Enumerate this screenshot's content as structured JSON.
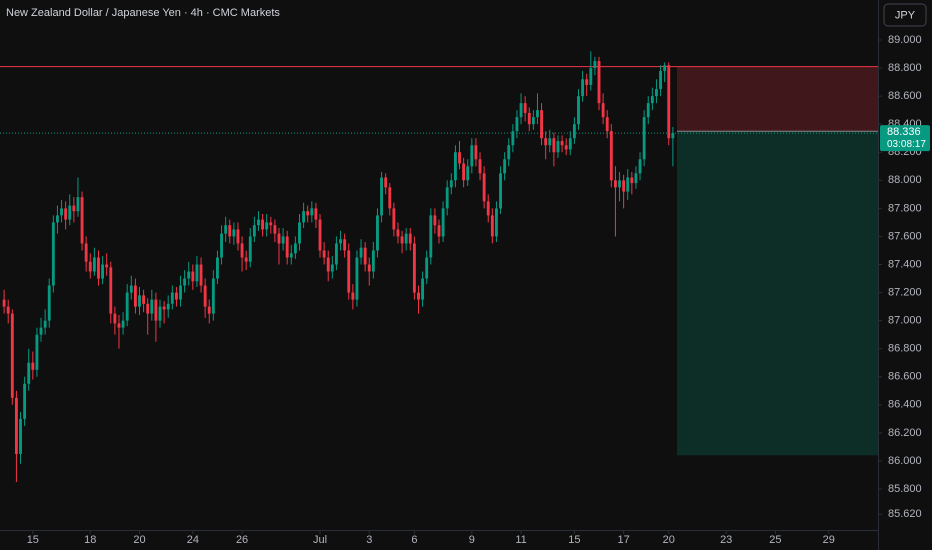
{
  "chart_data": {
    "type": "candlestick",
    "title": "New Zealand Dollar / Japanese Yen · 4h · CMC Markets",
    "currency": "JPY",
    "up_color": "#089981",
    "down_color": "#f23645",
    "ylim": [
      85.508,
      89.285
    ],
    "yticks": [
      {
        "value": 85.62,
        "label": "85.620"
      },
      {
        "value": 85.8,
        "label": "85.800"
      },
      {
        "value": 86,
        "label": "86.000"
      },
      {
        "value": 86.2,
        "label": "86.200"
      },
      {
        "value": 86.4,
        "label": "86.400"
      },
      {
        "value": 86.6,
        "label": "86.600"
      },
      {
        "value": 86.8,
        "label": "86.800"
      },
      {
        "value": 87,
        "label": "87.000"
      },
      {
        "value": 87.2,
        "label": "87.200"
      },
      {
        "value": 87.4,
        "label": "87.400"
      },
      {
        "value": 87.6,
        "label": "87.600"
      },
      {
        "value": 87.8,
        "label": "87.800"
      },
      {
        "value": 88,
        "label": "88.000"
      },
      {
        "value": 88.2,
        "label": "88.200"
      },
      {
        "value": 88.4,
        "label": "88.400"
      },
      {
        "value": 88.6,
        "label": "88.600"
      },
      {
        "value": 88.8,
        "label": "88.800"
      },
      {
        "value": 89,
        "label": "89.000"
      }
    ],
    "xlim": [
      -1,
      213
    ],
    "xticks": [
      {
        "value": 7,
        "label": "15"
      },
      {
        "value": 21,
        "label": "18"
      },
      {
        "value": 33,
        "label": "20"
      },
      {
        "value": 46,
        "label": "24"
      },
      {
        "value": 58,
        "label": "26"
      },
      {
        "value": 77,
        "label": "Jul"
      },
      {
        "value": 89,
        "label": "3"
      },
      {
        "value": 100,
        "label": "6"
      },
      {
        "value": 114,
        "label": "9"
      },
      {
        "value": 126,
        "label": "11"
      },
      {
        "value": 139,
        "label": "15"
      },
      {
        "value": 151,
        "label": "17"
      },
      {
        "value": 162,
        "label": "20"
      },
      {
        "value": 176,
        "label": "23"
      },
      {
        "value": 188,
        "label": "25"
      },
      {
        "value": 201,
        "label": "29"
      }
    ],
    "last_price": {
      "value": 88.336,
      "label": "88.336"
    },
    "countdown": "03:08:17",
    "position": {
      "start": 164,
      "stop": 88.81,
      "entry": 88.35,
      "target": 86.04
    },
    "ohlc": [
      [
        87.15,
        87.22,
        87.05,
        87.1
      ],
      [
        87.1,
        87.15,
        86.98,
        87.05
      ],
      [
        87.05,
        87.08,
        86.4,
        86.45
      ],
      [
        86.45,
        86.5,
        85.85,
        86.05
      ],
      [
        86.05,
        86.35,
        85.98,
        86.3
      ],
      [
        86.3,
        86.6,
        86.25,
        86.55
      ],
      [
        86.55,
        86.8,
        86.5,
        86.7
      ],
      [
        86.7,
        86.78,
        86.58,
        86.65
      ],
      [
        86.65,
        86.95,
        86.6,
        86.9
      ],
      [
        86.9,
        87.02,
        86.85,
        86.95
      ],
      [
        86.95,
        87.08,
        86.9,
        87.0
      ],
      [
        87.0,
        87.3,
        86.95,
        87.25
      ],
      [
        87.25,
        87.75,
        87.2,
        87.7
      ],
      [
        87.7,
        87.82,
        87.62,
        87.75
      ],
      [
        87.75,
        87.86,
        87.7,
        87.8
      ],
      [
        87.8,
        87.85,
        87.65,
        87.72
      ],
      [
        87.72,
        87.9,
        87.68,
        87.82
      ],
      [
        87.82,
        87.88,
        87.7,
        87.78
      ],
      [
        87.78,
        88.02,
        87.74,
        87.88
      ],
      [
        87.88,
        87.92,
        87.5,
        87.55
      ],
      [
        87.55,
        87.6,
        87.35,
        87.42
      ],
      [
        87.42,
        87.48,
        87.3,
        87.35
      ],
      [
        87.35,
        87.52,
        87.32,
        87.45
      ],
      [
        87.45,
        87.5,
        87.25,
        87.3
      ],
      [
        87.3,
        87.46,
        87.26,
        87.4
      ],
      [
        87.4,
        87.48,
        87.32,
        87.38
      ],
      [
        87.38,
        87.42,
        86.98,
        87.05
      ],
      [
        87.05,
        87.1,
        86.9,
        86.98
      ],
      [
        86.98,
        87.04,
        86.8,
        86.95
      ],
      [
        86.95,
        87.06,
        86.9,
        87.0
      ],
      [
        87.0,
        87.26,
        86.96,
        87.2
      ],
      [
        87.2,
        87.32,
        87.15,
        87.25
      ],
      [
        87.25,
        87.3,
        87.05,
        87.1
      ],
      [
        87.1,
        87.24,
        87.04,
        87.18
      ],
      [
        87.18,
        87.22,
        87.06,
        87.12
      ],
      [
        87.12,
        87.16,
        86.9,
        87.05
      ],
      [
        87.05,
        87.22,
        87.0,
        87.15
      ],
      [
        87.15,
        87.2,
        86.85,
        87.0
      ],
      [
        87.0,
        87.15,
        86.95,
        87.1
      ],
      [
        87.1,
        87.14,
        86.98,
        87.08
      ],
      [
        87.08,
        87.18,
        87.02,
        87.12
      ],
      [
        87.12,
        87.25,
        87.08,
        87.2
      ],
      [
        87.2,
        87.24,
        87.1,
        87.15
      ],
      [
        87.15,
        87.32,
        87.1,
        87.25
      ],
      [
        87.25,
        87.36,
        87.2,
        87.3
      ],
      [
        87.3,
        87.42,
        87.25,
        87.35
      ],
      [
        87.35,
        87.4,
        87.22,
        87.28
      ],
      [
        87.28,
        87.46,
        87.24,
        87.4
      ],
      [
        87.4,
        87.45,
        87.2,
        87.25
      ],
      [
        87.25,
        87.3,
        87.02,
        87.1
      ],
      [
        87.1,
        87.15,
        86.98,
        87.05
      ],
      [
        87.05,
        87.36,
        87.0,
        87.3
      ],
      [
        87.3,
        87.5,
        87.26,
        87.45
      ],
      [
        87.45,
        87.68,
        87.4,
        87.62
      ],
      [
        87.62,
        87.74,
        87.56,
        87.68
      ],
      [
        87.68,
        87.72,
        87.55,
        87.6
      ],
      [
        87.6,
        87.7,
        87.54,
        87.65
      ],
      [
        87.65,
        87.7,
        87.5,
        87.55
      ],
      [
        87.55,
        87.6,
        87.35,
        87.45
      ],
      [
        87.45,
        87.5,
        87.36,
        87.42
      ],
      [
        87.42,
        87.66,
        87.38,
        87.6
      ],
      [
        87.6,
        87.74,
        87.56,
        87.68
      ],
      [
        87.68,
        87.78,
        87.64,
        87.72
      ],
      [
        87.72,
        87.76,
        87.6,
        87.65
      ],
      [
        87.65,
        87.76,
        87.6,
        87.7
      ],
      [
        87.7,
        87.74,
        87.62,
        87.68
      ],
      [
        87.68,
        87.72,
        87.56,
        87.62
      ],
      [
        87.62,
        87.66,
        87.4,
        87.55
      ],
      [
        87.55,
        87.66,
        87.5,
        87.6
      ],
      [
        87.6,
        87.64,
        87.4,
        87.45
      ],
      [
        87.45,
        87.54,
        87.4,
        87.48
      ],
      [
        87.48,
        87.6,
        87.44,
        87.55
      ],
      [
        87.55,
        87.76,
        87.5,
        87.7
      ],
      [
        87.7,
        87.84,
        87.66,
        87.78
      ],
      [
        87.78,
        87.82,
        87.7,
        87.75
      ],
      [
        87.75,
        87.85,
        87.7,
        87.8
      ],
      [
        87.8,
        87.84,
        87.66,
        87.72
      ],
      [
        87.72,
        87.76,
        87.45,
        87.5
      ],
      [
        87.5,
        87.56,
        87.4,
        87.45
      ],
      [
        87.45,
        87.5,
        87.28,
        87.35
      ],
      [
        87.35,
        87.46,
        87.3,
        87.4
      ],
      [
        87.4,
        87.6,
        87.36,
        87.55
      ],
      [
        87.55,
        87.64,
        87.5,
        87.58
      ],
      [
        87.58,
        87.62,
        87.45,
        87.5
      ],
      [
        87.5,
        87.55,
        87.15,
        87.2
      ],
      [
        87.2,
        87.26,
        87.08,
        87.15
      ],
      [
        87.15,
        87.5,
        87.1,
        87.45
      ],
      [
        87.45,
        87.58,
        87.4,
        87.52
      ],
      [
        87.52,
        87.56,
        87.35,
        87.4
      ],
      [
        87.4,
        87.45,
        87.25,
        87.35
      ],
      [
        87.35,
        87.56,
        87.3,
        87.5
      ],
      [
        87.5,
        87.8,
        87.45,
        87.75
      ],
      [
        87.75,
        88.06,
        87.7,
        88.02
      ],
      [
        88.02,
        88.05,
        87.9,
        87.95
      ],
      [
        87.95,
        87.98,
        87.75,
        87.8
      ],
      [
        87.8,
        87.84,
        87.6,
        87.65
      ],
      [
        87.65,
        87.7,
        87.55,
        87.6
      ],
      [
        87.6,
        87.64,
        87.48,
        87.55
      ],
      [
        87.55,
        87.66,
        87.5,
        87.62
      ],
      [
        87.62,
        87.66,
        87.5,
        87.55
      ],
      [
        87.55,
        87.6,
        87.15,
        87.2
      ],
      [
        87.2,
        87.25,
        87.05,
        87.15
      ],
      [
        87.15,
        87.35,
        87.1,
        87.3
      ],
      [
        87.3,
        87.5,
        87.26,
        87.45
      ],
      [
        87.45,
        87.8,
        87.4,
        87.75
      ],
      [
        87.75,
        87.8,
        87.62,
        87.68
      ],
      [
        87.68,
        87.72,
        87.55,
        87.6
      ],
      [
        87.6,
        87.85,
        87.56,
        87.8
      ],
      [
        87.8,
        88.0,
        87.75,
        87.95
      ],
      [
        87.95,
        88.05,
        87.9,
        88.0
      ],
      [
        88.0,
        88.25,
        87.95,
        88.2
      ],
      [
        88.2,
        88.28,
        88.08,
        88.12
      ],
      [
        88.12,
        88.16,
        87.95,
        88.0
      ],
      [
        88.0,
        88.15,
        87.96,
        88.1
      ],
      [
        88.1,
        88.3,
        88.05,
        88.25
      ],
      [
        88.25,
        88.3,
        88.1,
        88.15
      ],
      [
        88.15,
        88.2,
        88.0,
        88.05
      ],
      [
        88.05,
        88.1,
        87.8,
        87.85
      ],
      [
        87.85,
        87.9,
        87.7,
        87.75
      ],
      [
        87.75,
        87.8,
        87.55,
        87.6
      ],
      [
        87.6,
        87.85,
        87.56,
        87.8
      ],
      [
        87.8,
        88.1,
        87.76,
        88.05
      ],
      [
        88.05,
        88.2,
        88.0,
        88.15
      ],
      [
        88.15,
        88.3,
        88.1,
        88.25
      ],
      [
        88.25,
        88.4,
        88.2,
        88.35
      ],
      [
        88.35,
        88.5,
        88.3,
        88.45
      ],
      [
        88.45,
        88.62,
        88.4,
        88.55
      ],
      [
        88.55,
        88.6,
        88.42,
        88.48
      ],
      [
        88.48,
        88.52,
        88.35,
        88.4
      ],
      [
        88.4,
        88.5,
        88.36,
        88.45
      ],
      [
        88.45,
        88.62,
        88.4,
        88.5
      ],
      [
        88.5,
        88.55,
        88.25,
        88.3
      ],
      [
        88.3,
        88.35,
        88.15,
        88.25
      ],
      [
        88.25,
        88.36,
        88.2,
        88.3
      ],
      [
        88.3,
        88.34,
        88.1,
        88.2
      ],
      [
        88.2,
        88.32,
        88.16,
        88.28
      ],
      [
        88.28,
        88.32,
        88.2,
        88.25
      ],
      [
        88.25,
        88.3,
        88.18,
        88.22
      ],
      [
        88.22,
        88.35,
        88.18,
        88.3
      ],
      [
        88.3,
        88.45,
        88.26,
        88.4
      ],
      [
        88.4,
        88.65,
        88.36,
        88.6
      ],
      [
        88.6,
        88.78,
        88.56,
        88.72
      ],
      [
        88.72,
        88.76,
        88.6,
        88.68
      ],
      [
        88.68,
        88.92,
        88.64,
        88.8
      ],
      [
        88.8,
        88.88,
        88.75,
        88.85
      ],
      [
        88.85,
        88.88,
        88.5,
        88.55
      ],
      [
        88.55,
        88.62,
        88.4,
        88.45
      ],
      [
        88.45,
        88.5,
        88.3,
        88.35
      ],
      [
        88.35,
        88.4,
        87.95,
        88.0
      ],
      [
        88.0,
        88.1,
        87.6,
        87.95
      ],
      [
        87.95,
        88.06,
        87.85,
        88.0
      ],
      [
        88.0,
        88.04,
        87.8,
        87.92
      ],
      [
        87.92,
        88.08,
        87.86,
        88.02
      ],
      [
        88.02,
        88.06,
        87.9,
        87.98
      ],
      [
        87.98,
        88.1,
        87.94,
        88.05
      ],
      [
        88.05,
        88.2,
        88.0,
        88.15
      ],
      [
        88.15,
        88.5,
        88.1,
        88.45
      ],
      [
        88.45,
        88.6,
        88.4,
        88.55
      ],
      [
        88.55,
        88.66,
        88.5,
        88.6
      ],
      [
        88.6,
        88.72,
        88.55,
        88.65
      ],
      [
        88.65,
        88.82,
        88.6,
        88.78
      ],
      [
        88.78,
        88.84,
        88.7,
        88.82
      ],
      [
        88.82,
        88.84,
        88.25,
        88.3
      ],
      [
        88.3,
        88.38,
        88.1,
        88.336
      ]
    ]
  }
}
